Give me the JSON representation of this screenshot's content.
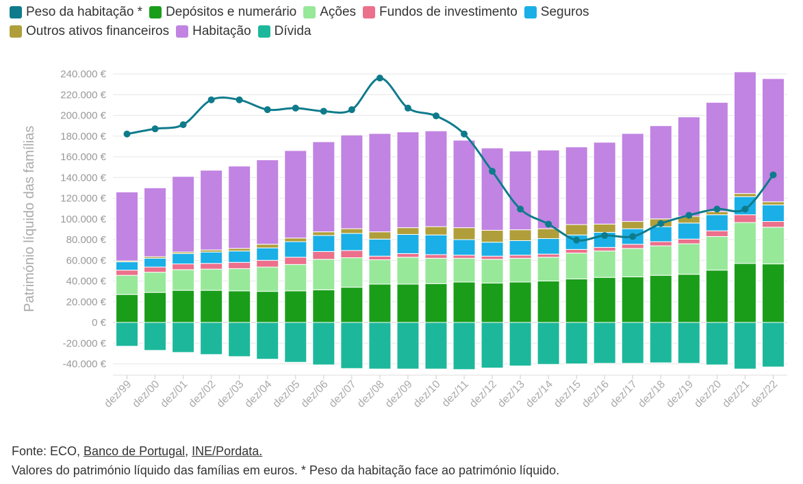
{
  "legend_rows": [
    [
      "peso",
      "depositos",
      "acoes",
      "fundos",
      "seguros"
    ],
    [
      "outros",
      "habitacao",
      "divida"
    ]
  ],
  "footer": {
    "source_prefix": "Fonte: ECO, ",
    "source_link1": "Banco de Portugal",
    "source_sep": ", ",
    "source_link2": "INE/Pordata.",
    "note": "Valores do património líquido das famílias em euros. * Peso da habitação face ao património líquido."
  },
  "chart_data": {
    "type": "bar",
    "stacked": true,
    "ylabel": "Património líquido das famílias",
    "xlabel": "",
    "ylim": [
      -45000,
      245000
    ],
    "yticks": [
      -40000,
      -20000,
      0,
      20000,
      40000,
      60000,
      80000,
      100000,
      120000,
      140000,
      160000,
      180000,
      200000,
      220000,
      240000
    ],
    "ytick_labels": [
      "-40.000 €",
      "-20.000 €",
      "0 €",
      "20.000 €",
      "40.000 €",
      "60.000 €",
      "80.000 €",
      "100.000 €",
      "120.000 €",
      "140.000 €",
      "160.000 €",
      "180.000 €",
      "200.000 €",
      "220.000 €",
      "240.000 €"
    ],
    "categories": [
      "dez/99",
      "dez/00",
      "dez/01",
      "dez/02",
      "dez/03",
      "dez/04",
      "dez/05",
      "dez/06",
      "dez/07",
      "dez/08",
      "dez/09",
      "dez/10",
      "dez/11",
      "dez/12",
      "dez/13",
      "dez/14",
      "dez/15",
      "dez/16",
      "dez/17",
      "dez/18",
      "dez/19",
      "dez/20",
      "dez/21",
      "dez/22"
    ],
    "series": [
      {
        "key": "divida",
        "name": "Dívida",
        "color": "#1db89c",
        "values": [
          -23000,
          -27000,
          -29000,
          -31000,
          -33000,
          -35500,
          -38500,
          -41000,
          -44500,
          -45000,
          -45000,
          -45000,
          -45500,
          -44000,
          -42000,
          -40500,
          -40000,
          -39500,
          -39500,
          -39000,
          -39500,
          -41000,
          -45000,
          -43000
        ]
      },
      {
        "key": "depositos",
        "name": "Depósitos e numerário",
        "color": "#1a9e1a",
        "values": [
          27000,
          29000,
          31000,
          31000,
          30500,
          30000,
          30500,
          31500,
          34000,
          37000,
          37000,
          37500,
          39000,
          38000,
          39000,
          40000,
          42000,
          43500,
          44000,
          45500,
          46500,
          50500,
          57000,
          56500
        ]
      },
      {
        "key": "acoes",
        "name": "Ações",
        "color": "#98e89a",
        "values": [
          18500,
          19500,
          20000,
          20500,
          21500,
          23500,
          25500,
          29500,
          28500,
          23500,
          26000,
          24500,
          23000,
          23000,
          23000,
          23000,
          25000,
          25500,
          27500,
          28500,
          29500,
          32500,
          39500,
          35500
        ]
      },
      {
        "key": "fundos",
        "name": "Fundos de investimento",
        "color": "#ec6f8b",
        "values": [
          5000,
          5000,
          5500,
          5500,
          6000,
          6500,
          7000,
          7500,
          7000,
          3500,
          3500,
          3500,
          3000,
          3000,
          3000,
          3000,
          3500,
          3500,
          4000,
          4000,
          4500,
          5500,
          7500,
          5500
        ]
      },
      {
        "key": "seguros",
        "name": "Seguros",
        "color": "#1aafe6",
        "values": [
          8000,
          8500,
          10000,
          11000,
          11000,
          12000,
          15000,
          15500,
          16500,
          16500,
          18500,
          19000,
          15000,
          13500,
          14000,
          15000,
          14000,
          14500,
          15000,
          14500,
          15500,
          15500,
          17500,
          16000
        ]
      },
      {
        "key": "outros",
        "name": "Outros ativos financeiros",
        "color": "#b09e3a",
        "values": [
          1000,
          1500,
          1500,
          2000,
          2500,
          3500,
          3500,
          3500,
          4500,
          7000,
          6500,
          8000,
          11500,
          11500,
          10500,
          9500,
          10000,
          8000,
          7000,
          7500,
          6500,
          3000,
          3000,
          3000
        ]
      },
      {
        "key": "habitacao",
        "name": "Habitação",
        "color": "#c184e2",
        "values": [
          66500,
          66500,
          73000,
          77000,
          79500,
          81500,
          84500,
          87000,
          90500,
          95000,
          92500,
          92500,
          84500,
          79500,
          76000,
          76000,
          75000,
          79000,
          85000,
          90000,
          96000,
          105500,
          117500,
          119000
        ]
      }
    ],
    "line": {
      "key": "peso",
      "name": "Peso da habitação *",
      "color": "#0e7b8c",
      "values": [
        182000,
        187000,
        191000,
        215000,
        215000,
        205500,
        207000,
        204000,
        205500,
        236000,
        207000,
        199500,
        182000,
        146000,
        109500,
        95000,
        79500,
        84000,
        83000,
        95500,
        103500,
        109500,
        109500,
        142500
      ]
    }
  }
}
